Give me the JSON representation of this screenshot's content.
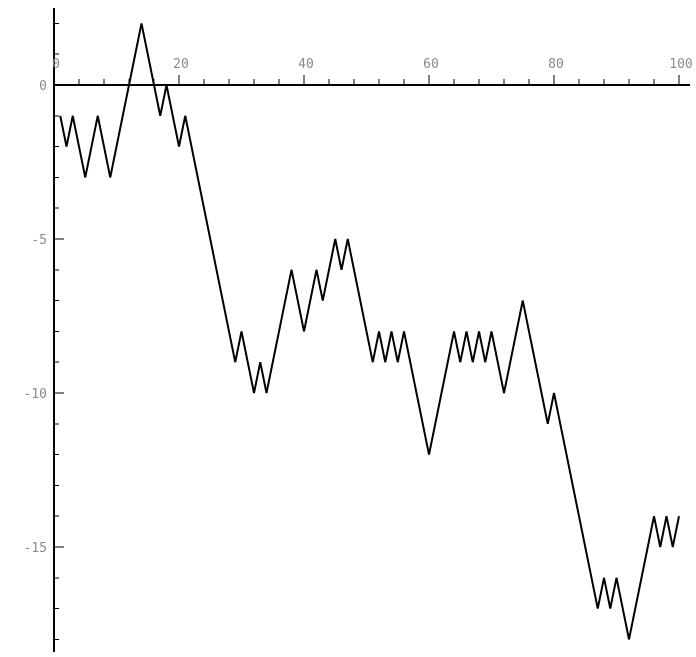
{
  "chart_data": {
    "type": "line",
    "title": "",
    "xlabel": "",
    "ylabel": "",
    "xlim": [
      0,
      100
    ],
    "ylim": [
      -18,
      2.5
    ],
    "x_tick_labels": [
      "0",
      "20",
      "40",
      "60",
      "80",
      "100"
    ],
    "y_tick_labels": [
      "0",
      "-5",
      "-10",
      "-15"
    ],
    "grid": false,
    "legend": "none",
    "colors": {
      "line": "#000000",
      "axis": "#000000",
      "tick_label": "#8a8a8a"
    },
    "series": [
      {
        "x": [
          1,
          2,
          3,
          4,
          5,
          6,
          7,
          8,
          9,
          10,
          11,
          12,
          13,
          14,
          15,
          16,
          17,
          18,
          19,
          20,
          21,
          22,
          23,
          24,
          25,
          26,
          27,
          28,
          29,
          30,
          31,
          32,
          33,
          34,
          35,
          36,
          37,
          38,
          39,
          40,
          41,
          42,
          43,
          44,
          45,
          46,
          47,
          48,
          49,
          50,
          51,
          52,
          53,
          54,
          55,
          56,
          57,
          58,
          59,
          60,
          61,
          62,
          63,
          64,
          65,
          66,
          67,
          68,
          69,
          70,
          71,
          72,
          73,
          74,
          75,
          76,
          77,
          78,
          79,
          80,
          81,
          82,
          83,
          84,
          85,
          86,
          87,
          88,
          89,
          90,
          91,
          92,
          93,
          94,
          95,
          96,
          97,
          98,
          99,
          100
        ],
        "y": [
          -1,
          -2,
          -1,
          -2,
          -3,
          -2,
          -1,
          -2,
          -3,
          -2,
          -1,
          0,
          1,
          2,
          1,
          0,
          -1,
          0,
          -1,
          -2,
          -1,
          -2,
          -3,
          -4,
          -5,
          -6,
          -7,
          -8,
          -9,
          -8,
          -9,
          -10,
          -9,
          -10,
          -9,
          -8,
          -7,
          -6,
          -7,
          -8,
          -7,
          -6,
          -7,
          -6,
          -5,
          -6,
          -5,
          -6,
          -7,
          -8,
          -9,
          -8,
          -9,
          -8,
          -9,
          -8,
          -9,
          -10,
          -11,
          -12,
          -11,
          -10,
          -9,
          -8,
          -9,
          -8,
          -9,
          -8,
          -9,
          -8,
          -9,
          -10,
          -9,
          -8,
          -7,
          -8,
          -9,
          -10,
          -11,
          -10,
          -11,
          -12,
          -13,
          -14,
          -15,
          -16,
          -17,
          -16,
          -17,
          -16,
          -17,
          -18,
          -17,
          -16,
          -15,
          -14,
          -15,
          -14,
          -15,
          -14
        ]
      }
    ]
  }
}
